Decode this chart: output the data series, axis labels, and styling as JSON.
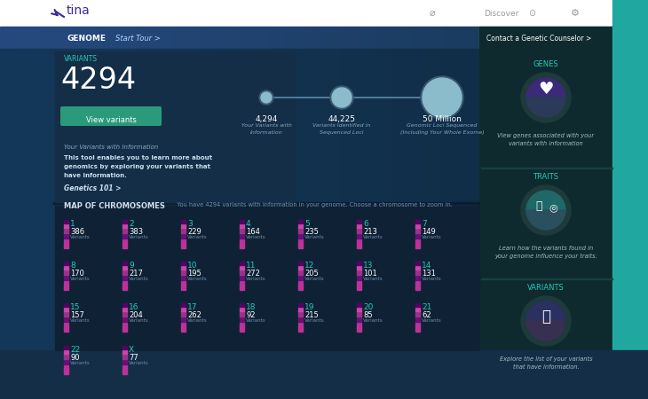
{
  "bg_white": "#ffffff",
  "bg_blue_nav": "#2e5080",
  "bg_blue_main": "#1e4060",
  "bg_blue_dark": "#152e48",
  "bg_variants_box": "#163348",
  "bg_map": "#152a3a",
  "bg_right_panel": "#0e2828",
  "bg_teal_edge": "#20a8a0",
  "text_teal": "#22ccb8",
  "text_white": "#ffffff",
  "text_light": "#90b0c8",
  "text_medium": "#c0d8e8",
  "btn_green": "#2a9a7a",
  "variants_count": "4294",
  "btn_label": "View variants",
  "sub_label": "Your Variants with Information",
  "body_lines": [
    "This tool enables you to learn more about",
    "genomics by exploring your variants that",
    "have information."
  ],
  "genetics_link": "Genetics 101 >",
  "prog_vals": [
    "4,294",
    "44,225",
    "50 Million"
  ],
  "prog_subs": [
    [
      "Your Variants with",
      "Information"
    ],
    [
      "Variants Identified in",
      "Sequenced Loci"
    ],
    [
      "Genomic Loci Sequenced",
      "(Including Your Whole Exome)"
    ]
  ],
  "map_header": "MAP OF CHROMOSOMES",
  "map_sub": "You have 4294 variants with information in your genome. Choose a chromosome to zoom in.",
  "chroms": [
    [
      "1",
      "386"
    ],
    [
      "2",
      "383"
    ],
    [
      "3",
      "229"
    ],
    [
      "4",
      "164"
    ],
    [
      "5",
      "235"
    ],
    [
      "6",
      "213"
    ],
    [
      "7",
      "149"
    ],
    [
      "8",
      "170"
    ],
    [
      "9",
      "217"
    ],
    [
      "10",
      "195"
    ],
    [
      "11",
      "272"
    ],
    [
      "12",
      "205"
    ],
    [
      "13",
      "101"
    ],
    [
      "14",
      "131"
    ],
    [
      "15",
      "157"
    ],
    [
      "16",
      "204"
    ],
    [
      "17",
      "262"
    ],
    [
      "18",
      "92"
    ],
    [
      "19",
      "215"
    ],
    [
      "20",
      "85"
    ],
    [
      "21",
      "62"
    ],
    [
      "22",
      "90"
    ],
    [
      "X",
      "77"
    ]
  ],
  "right_titles": [
    "GENES",
    "TRAITS",
    "VARIANTS"
  ],
  "right_descs": [
    "View genes associated with your\nvariants with information",
    "Learn how the variants found in\nyour genome influence your traits.",
    "Explore the list of your variants\nthat have information."
  ],
  "genes_icon_colors": [
    "#6030a0",
    "#384a60"
  ],
  "traits_icon_colors": [
    "#1e7070",
    "#2a5060"
  ],
  "variants_icon_colors": [
    "#2a3060",
    "#383050"
  ]
}
